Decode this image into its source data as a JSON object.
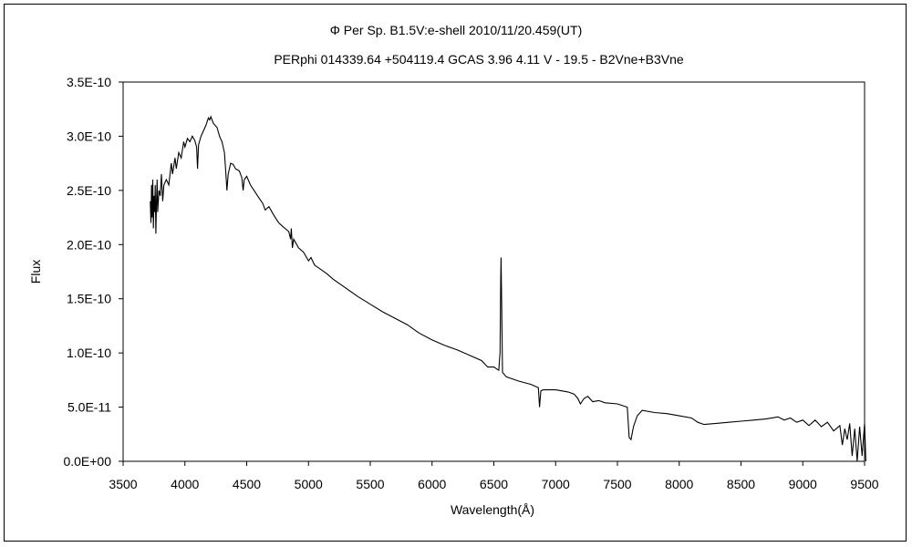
{
  "chart_data": {
    "type": "line",
    "title": "Φ Per    Sp. B1.5V:e-shell    2010/11/20.459(UT)",
    "subtitle": "PERphi 014339.64 +504119.4 GCAS 3.96 4.11 V - 19.5 - B2Vne+B3Vne",
    "xlabel": "Wavelength(Å)",
    "ylabel": "Flux",
    "xlim": [
      3500,
      9500
    ],
    "ylim": [
      0,
      3.5e-10
    ],
    "xticks": [
      3500,
      4000,
      4500,
      5000,
      5500,
      6000,
      6500,
      7000,
      7500,
      8000,
      8500,
      9000,
      9500
    ],
    "xtick_labels": [
      "3500",
      "4000",
      "4500",
      "5000",
      "5500",
      "6000",
      "6500",
      "7000",
      "7500",
      "8000",
      "8500",
      "9000",
      "9500"
    ],
    "yticks": [
      0,
      5e-11,
      1e-10,
      1.5e-10,
      2e-10,
      2.5e-10,
      3e-10,
      3.5e-10
    ],
    "ytick_labels": [
      "0.0E+00",
      "5.0E-11",
      "1.0E-10",
      "1.5E-10",
      "2.0E-10",
      "2.5E-10",
      "3.0E-10",
      "3.5E-10"
    ],
    "grid": false,
    "legend": "none",
    "y_unit_scale": 1e-10,
    "series": [
      {
        "name": "Flux",
        "color": "#000000",
        "points_x_yE10": [
          [
            3720,
            2.4
          ],
          [
            3725,
            2.2
          ],
          [
            3730,
            2.55
          ],
          [
            3735,
            2.25
          ],
          [
            3740,
            2.6
          ],
          [
            3745,
            2.15
          ],
          [
            3750,
            2.45
          ],
          [
            3755,
            2.3
          ],
          [
            3760,
            2.55
          ],
          [
            3765,
            2.1
          ],
          [
            3770,
            2.4
          ],
          [
            3775,
            2.6
          ],
          [
            3780,
            2.3
          ],
          [
            3790,
            2.5
          ],
          [
            3800,
            2.45
          ],
          [
            3810,
            2.65
          ],
          [
            3820,
            2.4
          ],
          [
            3830,
            2.55
          ],
          [
            3850,
            2.6
          ],
          [
            3870,
            2.55
          ],
          [
            3890,
            2.75
          ],
          [
            3900,
            2.65
          ],
          [
            3920,
            2.8
          ],
          [
            3930,
            2.7
          ],
          [
            3950,
            2.85
          ],
          [
            3970,
            2.8
          ],
          [
            3990,
            2.95
          ],
          [
            4000,
            2.9
          ],
          [
            4020,
            2.98
          ],
          [
            4040,
            2.95
          ],
          [
            4060,
            3.0
          ],
          [
            4080,
            2.96
          ],
          [
            4095,
            2.9
          ],
          [
            4102,
            2.7
          ],
          [
            4110,
            2.92
          ],
          [
            4130,
            3.0
          ],
          [
            4150,
            3.05
          ],
          [
            4170,
            3.1
          ],
          [
            4190,
            3.17
          ],
          [
            4200,
            3.15
          ],
          [
            4210,
            3.18
          ],
          [
            4230,
            3.12
          ],
          [
            4260,
            3.08
          ],
          [
            4280,
            3.0
          ],
          [
            4300,
            2.95
          ],
          [
            4320,
            2.85
          ],
          [
            4335,
            2.6
          ],
          [
            4340,
            2.5
          ],
          [
            4350,
            2.65
          ],
          [
            4370,
            2.75
          ],
          [
            4390,
            2.74
          ],
          [
            4410,
            2.7
          ],
          [
            4440,
            2.68
          ],
          [
            4460,
            2.62
          ],
          [
            4471,
            2.5
          ],
          [
            4480,
            2.6
          ],
          [
            4500,
            2.63
          ],
          [
            4530,
            2.55
          ],
          [
            4560,
            2.5
          ],
          [
            4600,
            2.43
          ],
          [
            4630,
            2.38
          ],
          [
            4650,
            2.32
          ],
          [
            4680,
            2.35
          ],
          [
            4720,
            2.27
          ],
          [
            4760,
            2.2
          ],
          [
            4800,
            2.16
          ],
          [
            4840,
            2.12
          ],
          [
            4855,
            2.05
          ],
          [
            4861,
            2.15
          ],
          [
            4870,
            1.97
          ],
          [
            4880,
            2.05
          ],
          [
            4920,
            1.97
          ],
          [
            4960,
            1.93
          ],
          [
            5000,
            1.85
          ],
          [
            5020,
            1.88
          ],
          [
            5050,
            1.81
          ],
          [
            5100,
            1.77
          ],
          [
            5150,
            1.73
          ],
          [
            5200,
            1.68
          ],
          [
            5300,
            1.6
          ],
          [
            5400,
            1.52
          ],
          [
            5500,
            1.45
          ],
          [
            5600,
            1.38
          ],
          [
            5700,
            1.32
          ],
          [
            5800,
            1.26
          ],
          [
            5875,
            1.2
          ],
          [
            5900,
            1.18
          ],
          [
            6000,
            1.12
          ],
          [
            6100,
            1.07
          ],
          [
            6200,
            1.03
          ],
          [
            6300,
            0.98
          ],
          [
            6400,
            0.93
          ],
          [
            6450,
            0.87
          ],
          [
            6500,
            0.87
          ],
          [
            6540,
            0.84
          ],
          [
            6550,
            1.0
          ],
          [
            6555,
            1.65
          ],
          [
            6558,
            1.88
          ],
          [
            6563,
            1.5
          ],
          [
            6570,
            0.82
          ],
          [
            6600,
            0.78
          ],
          [
            6700,
            0.74
          ],
          [
            6800,
            0.71
          ],
          [
            6860,
            0.68
          ],
          [
            6870,
            0.5
          ],
          [
            6880,
            0.65
          ],
          [
            6900,
            0.66
          ],
          [
            7000,
            0.66
          ],
          [
            7100,
            0.64
          ],
          [
            7150,
            0.62
          ],
          [
            7180,
            0.58
          ],
          [
            7200,
            0.53
          ],
          [
            7230,
            0.58
          ],
          [
            7260,
            0.6
          ],
          [
            7300,
            0.55
          ],
          [
            7350,
            0.56
          ],
          [
            7400,
            0.54
          ],
          [
            7500,
            0.53
          ],
          [
            7580,
            0.5
          ],
          [
            7595,
            0.22
          ],
          [
            7610,
            0.2
          ],
          [
            7630,
            0.32
          ],
          [
            7660,
            0.42
          ],
          [
            7700,
            0.47
          ],
          [
            7800,
            0.45
          ],
          [
            7900,
            0.44
          ],
          [
            8000,
            0.42
          ],
          [
            8100,
            0.4
          ],
          [
            8150,
            0.36
          ],
          [
            8200,
            0.34
          ],
          [
            8300,
            0.35
          ],
          [
            8400,
            0.36
          ],
          [
            8500,
            0.37
          ],
          [
            8600,
            0.38
          ],
          [
            8700,
            0.39
          ],
          [
            8800,
            0.41
          ],
          [
            8850,
            0.38
          ],
          [
            8900,
            0.4
          ],
          [
            8950,
            0.36
          ],
          [
            9000,
            0.38
          ],
          [
            9050,
            0.33
          ],
          [
            9100,
            0.38
          ],
          [
            9150,
            0.32
          ],
          [
            9200,
            0.36
          ],
          [
            9250,
            0.28
          ],
          [
            9300,
            0.33
          ],
          [
            9320,
            0.15
          ],
          [
            9340,
            0.3
          ],
          [
            9360,
            0.2
          ],
          [
            9380,
            0.35
          ],
          [
            9400,
            0.05
          ],
          [
            9420,
            0.3
          ],
          [
            9440,
            0.0
          ],
          [
            9460,
            0.32
          ],
          [
            9480,
            0.05
          ],
          [
            9500,
            0.35
          ],
          [
            9510,
            0.0
          ]
        ]
      }
    ]
  }
}
